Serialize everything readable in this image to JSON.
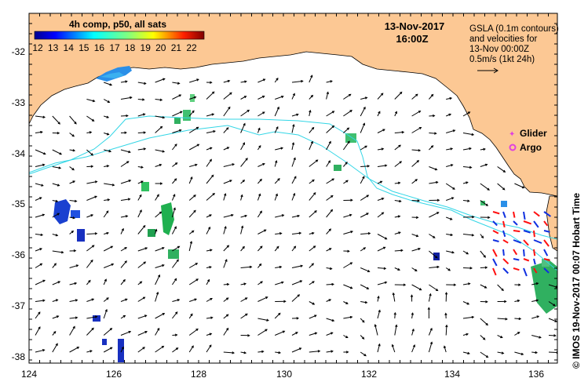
{
  "colorbar": {
    "title": "4h comp, p50, all sats",
    "ticks": [
      "12",
      "13",
      "14",
      "15",
      "16",
      "17",
      "18",
      "19",
      "20",
      "21",
      "22"
    ],
    "range": [
      12,
      22
    ]
  },
  "header": {
    "date": "13-Nov-2017",
    "time": "16:00Z"
  },
  "info": {
    "line1": "GSLA (0.1m contours)",
    "line2": "and velocities for",
    "line3": "13-Nov 00:00Z",
    "line4": "0.5m/s (1kt 24h)"
  },
  "legend": {
    "glider": "Glider",
    "argo": "Argo",
    "glider_color": "#e040e0",
    "argo_color": "#e040e0"
  },
  "axes": {
    "x_ticks": [
      "124",
      "126",
      "128",
      "130",
      "132",
      "134",
      "136"
    ],
    "y_ticks": [
      "-32",
      "-33",
      "-34",
      "-35",
      "-36",
      "-37",
      "-38"
    ],
    "lon_range": [
      124,
      136.5
    ],
    "lat_range": [
      -38.1,
      -31.6
    ]
  },
  "credit": "© IMOS 19-Nov-2017 00:07 Hobart Time",
  "colors": {
    "land": "#fcc894",
    "contour": "#33d6e6",
    "arrow": "#000000"
  }
}
